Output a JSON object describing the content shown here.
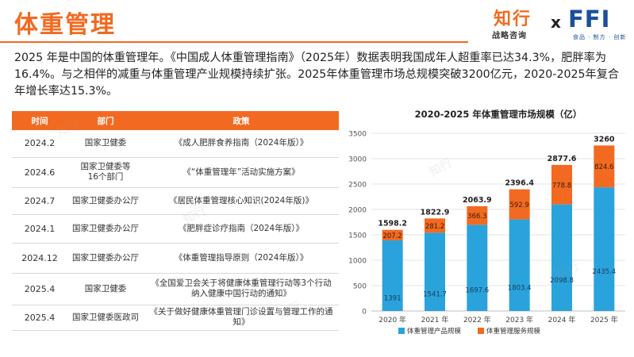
{
  "header": {
    "title": "体重管理",
    "logo_main": "知行",
    "logo_sub": "战略咨询",
    "logo_x": "x",
    "logo_ffi": "FFI",
    "logo_ffi_sub": "食品 · 制方 · 创新"
  },
  "summary": "2025 年是中国的体重管理年。《中国成人体重管理指南》（2025年）数据表明我国成年人超重率已达34.3%，肥胖率为16.4%。与之相伴的减重与体重管理产业规模持续扩张。2025年体重管理市场总规模突破3200亿元，2020-2025年复合年增长率达15.3%。",
  "policy_table": {
    "headers": [
      "时间",
      "部门",
      "政策"
    ],
    "rows": [
      {
        "time": "2024.2",
        "dept": "国家卫健委",
        "policy": "《成人肥胖食养指南（2024年版）》"
      },
      {
        "time": "2024.6",
        "dept": "国家卫健委等\n16个部门",
        "policy": "《“体重管理年”活动实施方案》"
      },
      {
        "time": "2024.7",
        "dept": "国家卫健委办公厅",
        "policy": "《居民体重管理核心知识(2024年版)》"
      },
      {
        "time": "2024.1",
        "dept": "国家卫健委办公厅",
        "policy": "《肥胖症诊疗指南（2024年版）》"
      },
      {
        "time": "2024.12",
        "dept": "国家卫健委办公厅",
        "policy": "《体重管理指导原则（2024年版）》"
      },
      {
        "time": "2025.4",
        "dept": "国家卫健委",
        "policy": "《全国爱卫会关于将健康体重管理行动等3个行动\n纳入健康中国行动的通知》"
      },
      {
        "time": "2025.4",
        "dept": "国家卫健委医政司",
        "policy": "《关于做好健康体重管理门诊设置与管理工作的通知》"
      }
    ]
  },
  "chart_data": {
    "type": "bar",
    "stacked": true,
    "title": "2020-2025 年体重管理市场规模（亿）",
    "categories": [
      "2020 年",
      "2021 年",
      "2022 年",
      "2023 年",
      "2024 年",
      "2025 年"
    ],
    "series": [
      {
        "name": "体重管理产品规模",
        "color": "#2aa3dc",
        "values": [
          1391,
          1541.7,
          1697.6,
          1803.4,
          2098.8,
          2435.4
        ],
        "labels": [
          "1391",
          "1541.7",
          "1697.6",
          "1803.4",
          "2098.8",
          "2435.4"
        ]
      },
      {
        "name": "体重管理服务规模",
        "color": "#f26a21",
        "values": [
          207.2,
          281.2,
          366.3,
          592.9,
          778.8,
          824.6
        ],
        "labels": [
          "207.2",
          "281.2",
          "366.3",
          "592.9",
          "778.8",
          "824.6"
        ]
      }
    ],
    "totals": [
      "1598.2",
      "1822.9",
      "2063.9",
      "2396.4",
      "2877.6",
      "3260"
    ],
    "ylim": [
      0,
      3500
    ],
    "yticks": [
      0,
      500,
      1000,
      1500,
      2000,
      2500,
      3000,
      3500
    ],
    "grid": true,
    "legend_position": "bottom"
  },
  "colors": {
    "accent": "#f26a21",
    "blue": "#2aa3dc",
    "brand_blue": "#1b4f9c"
  }
}
